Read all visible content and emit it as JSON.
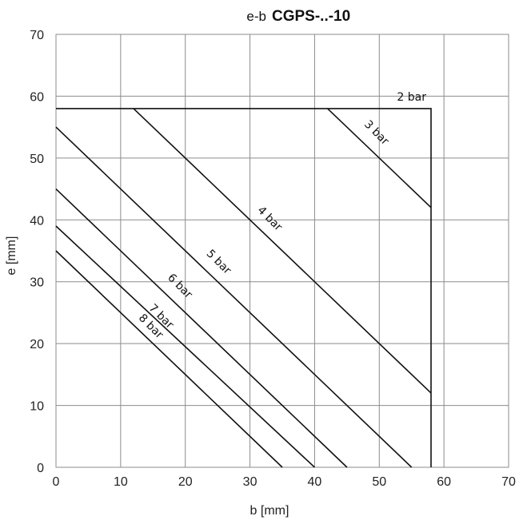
{
  "chart_data": {
    "type": "line",
    "title_prefix": "e-b",
    "title": "CGPS-..-10",
    "xlabel": "b [mm]",
    "ylabel": "e [mm]",
    "xlim": [
      0,
      70
    ],
    "ylim": [
      0,
      70
    ],
    "xticks": [
      0,
      10,
      20,
      30,
      40,
      50,
      60,
      70
    ],
    "yticks": [
      0,
      10,
      20,
      30,
      40,
      50,
      60,
      70
    ],
    "grid": true,
    "series": [
      {
        "name": "2 bar",
        "points": [
          [
            0,
            58
          ],
          [
            58,
            58
          ],
          [
            58,
            0
          ]
        ]
      },
      {
        "name": "3 bar",
        "points": [
          [
            42,
            58
          ],
          [
            58,
            42
          ]
        ]
      },
      {
        "name": "4 bar",
        "points": [
          [
            12,
            58
          ],
          [
            58,
            12
          ]
        ]
      },
      {
        "name": "5 bar",
        "points": [
          [
            0,
            55
          ],
          [
            55,
            0
          ]
        ]
      },
      {
        "name": "6 bar",
        "points": [
          [
            0,
            45
          ],
          [
            45,
            0
          ]
        ]
      },
      {
        "name": "7 bar",
        "points": [
          [
            0,
            39
          ],
          [
            40,
            0
          ]
        ]
      },
      {
        "name": "8 bar",
        "points": [
          [
            0,
            35
          ],
          [
            35,
            0
          ]
        ]
      }
    ]
  }
}
